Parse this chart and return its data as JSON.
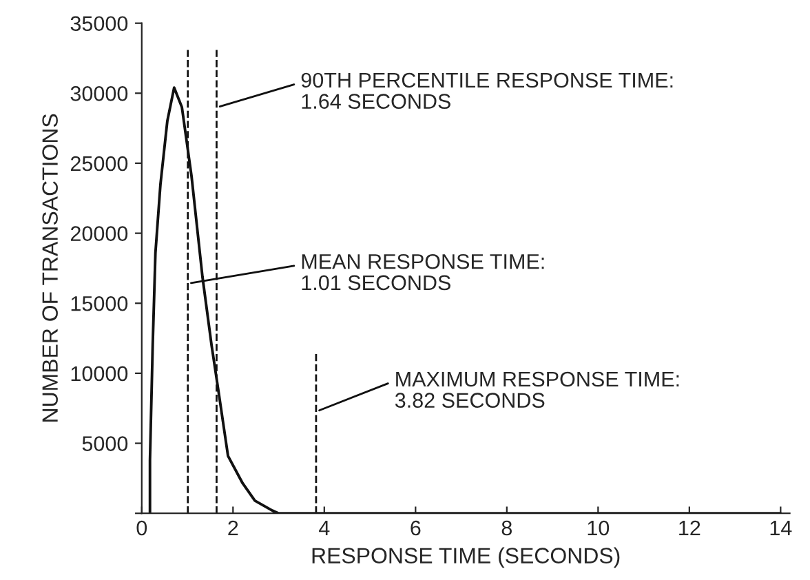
{
  "chart_data": {
    "type": "line",
    "xlabel": "RESPONSE TIME (SECONDS)",
    "ylabel": "NUMBER OF TRANSACTIONS",
    "xlim": [
      0,
      14.2
    ],
    "ylim": [
      0,
      35000
    ],
    "xticks": [
      0,
      2,
      4,
      6,
      8,
      10,
      12,
      14
    ],
    "yticks": [
      {
        "value": 0,
        "label": null
      },
      5000,
      10000,
      15000,
      20000,
      25000,
      30000,
      35000
    ],
    "series": [
      {
        "color": "#111111",
        "x": [
          0.18,
          0.18,
          0.24,
          0.3,
          0.41,
          0.56,
          0.71,
          0.88,
          1.09,
          1.33,
          1.53,
          1.68,
          1.89,
          2.21,
          2.48,
          2.86,
          3.0,
          14.0
        ],
        "values": [
          0,
          3800,
          12000,
          18600,
          23500,
          28000,
          30400,
          29000,
          24100,
          16900,
          12000,
          8750,
          4100,
          2150,
          900,
          200,
          0,
          0
        ]
      }
    ],
    "ref_lines": [
      {
        "axis": "x",
        "value": 1.64,
        "label": "90TH PERCENTILE RESPONSE TIME:\n1.64 SECONDS",
        "line_style": "dashed",
        "color": "#111111"
      },
      {
        "axis": "x",
        "value": 1.01,
        "label": "MEAN RESPONSE TIME:\n1.01 SECONDS",
        "line_style": "dashed",
        "color": "#111111"
      },
      {
        "axis": "x",
        "value": 3.82,
        "label": "MAXIMUM RESPONSE TIME:\n3.82 SECONDS",
        "line_style": "dashed",
        "color": "#111111"
      }
    ],
    "grid": false,
    "legend": false
  }
}
